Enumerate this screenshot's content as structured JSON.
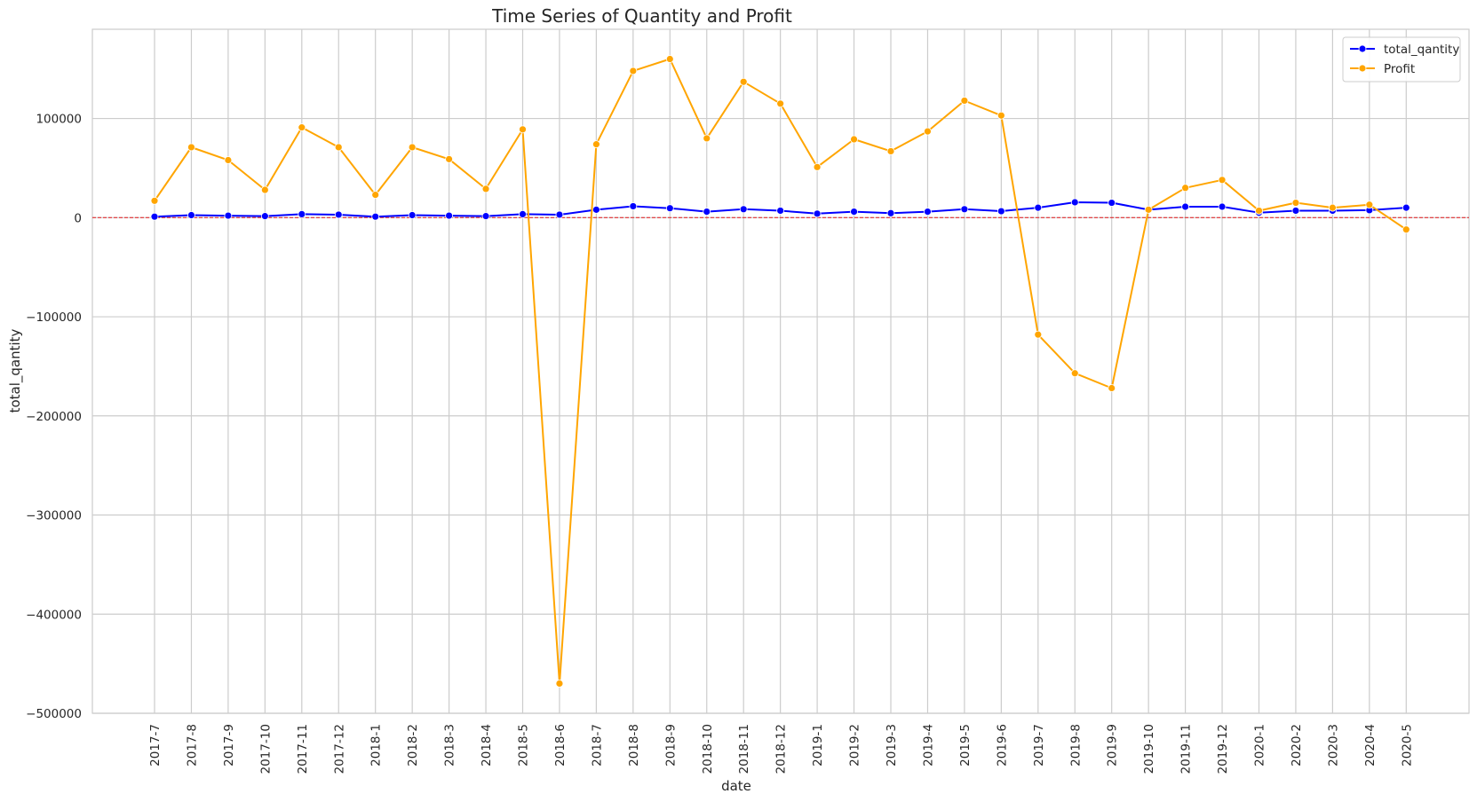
{
  "chart_data": {
    "type": "line",
    "title": "Time Series of Quantity and Profit",
    "xlabel": "date",
    "ylabel": "total_qantity",
    "ylim": [
      -500000,
      190000
    ],
    "yticks": [
      100000,
      0,
      -100000,
      -200000,
      -300000,
      -400000,
      -500000
    ],
    "ytick_labels": [
      "100000",
      "0",
      "−100000",
      "−200000",
      "−300000",
      "−400000",
      "−500000"
    ],
    "categories": [
      "2017-7",
      "2017-8",
      "2017-9",
      "2017-10",
      "2017-11",
      "2017-12",
      "2018-1",
      "2018-2",
      "2018-3",
      "2018-4",
      "2018-5",
      "2018-6",
      "2018-7",
      "2018-8",
      "2018-9",
      "2018-10",
      "2018-11",
      "2018-12",
      "2019-1",
      "2019-2",
      "2019-3",
      "2019-4",
      "2019-5",
      "2019-6",
      "2019-7",
      "2019-8",
      "2019-9",
      "2019-10",
      "2019-11",
      "2019-12",
      "2020-1",
      "2020-2",
      "2020-3",
      "2020-4",
      "2020-5"
    ],
    "grid": true,
    "legend_position": "top-right",
    "reference_line": {
      "y": 0,
      "color": "#e31a1c",
      "style": "dashed"
    },
    "series": [
      {
        "name": "total_qantity",
        "color": "#0000ff",
        "values": [
          1000,
          2500,
          2000,
          1500,
          3500,
          3000,
          1000,
          2500,
          2000,
          1500,
          3500,
          3000,
          8000,
          11500,
          9500,
          6000,
          8500,
          7000,
          4000,
          6000,
          4500,
          6000,
          8500,
          6500,
          10000,
          15500,
          15000,
          8000,
          11000,
          11000,
          5000,
          7000,
          7000,
          7500,
          10000
        ]
      },
      {
        "name": "Profit",
        "color": "#ffa500",
        "values": [
          17000,
          71000,
          58000,
          28000,
          91000,
          71000,
          23000,
          71000,
          59000,
          29000,
          89000,
          -470000,
          74000,
          148000,
          160000,
          80000,
          137000,
          115000,
          51000,
          79000,
          67000,
          87000,
          118000,
          103000,
          -118000,
          -157000,
          -172000,
          8000,
          30000,
          38000,
          7000,
          15000,
          10000,
          13000,
          -12000
        ]
      }
    ]
  }
}
